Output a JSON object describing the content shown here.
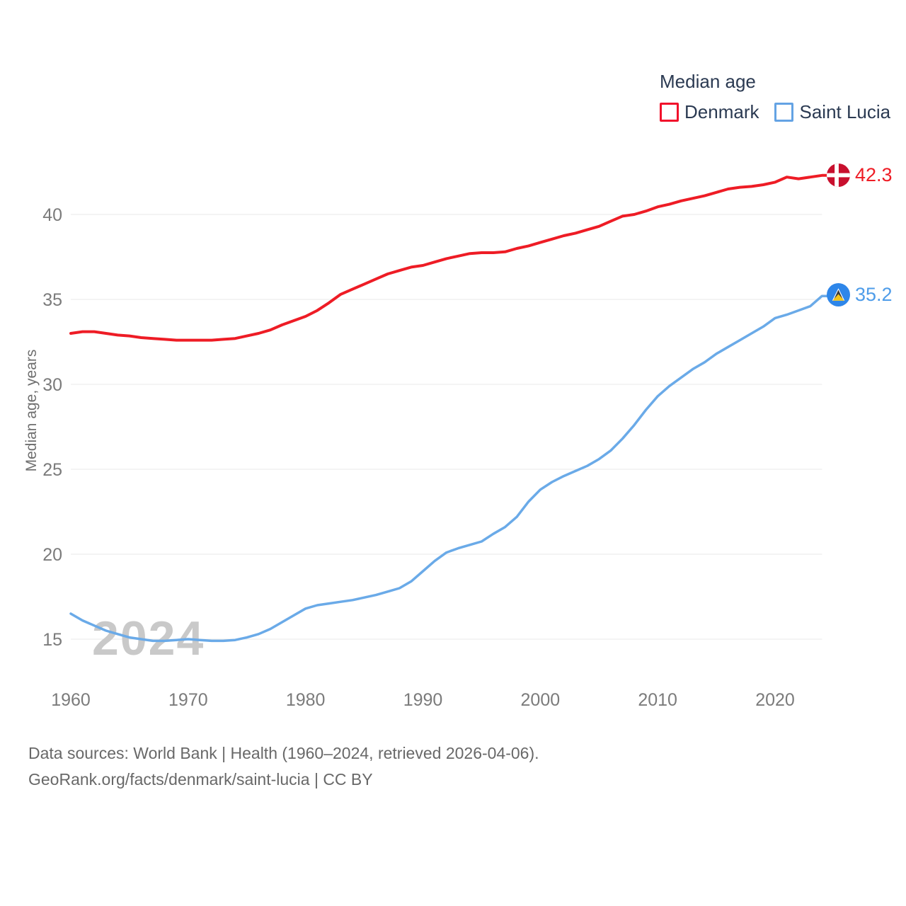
{
  "legend": {
    "title": "Median age",
    "items": [
      {
        "label": "Denmark",
        "color": "#f1112b"
      },
      {
        "label": "Saint Lucia",
        "color": "#64a3e4"
      }
    ]
  },
  "y_axis_title": "Median age, years",
  "footer": {
    "line1": "Data sources: World Bank | Health (1960–2024, retrieved 2026-04-06).",
    "line2": "GeoRank.org/facts/denmark/saint-lucia | CC BY"
  },
  "icons": {
    "denmark_flag": "denmark-flag-icon",
    "saint_lucia_flag": "saint-lucia-flag-icon"
  },
  "colors": {
    "denmark_line": "#ee1c25",
    "denmark_flag_red": "#c8102e",
    "saint_lucia_line": "#6aaae8",
    "saint_lucia_flag_blue": "#2e86e9",
    "legend_text": "#2b3a52",
    "tick_label": "#7b7b7b",
    "grid_line": "#e9e9e9",
    "watermark": "#c9c9c9",
    "footer_text": "#686868"
  },
  "chart_data": {
    "type": "line",
    "title": "Median age",
    "xlabel": "",
    "ylabel": "Median age, years",
    "watermark": "2024",
    "grid": true,
    "legend_position": "top-right",
    "xlim": [
      1960,
      2024
    ],
    "ylim": [
      13.5,
      43.5
    ],
    "xticks": [
      1960,
      1970,
      1980,
      1990,
      2000,
      2010,
      2020
    ],
    "yticks": [
      15,
      20,
      25,
      30,
      35,
      40
    ],
    "x": [
      1960,
      1961,
      1962,
      1963,
      1964,
      1965,
      1966,
      1967,
      1968,
      1969,
      1970,
      1971,
      1972,
      1973,
      1974,
      1975,
      1976,
      1977,
      1978,
      1979,
      1980,
      1981,
      1982,
      1983,
      1984,
      1985,
      1986,
      1987,
      1988,
      1989,
      1990,
      1991,
      1992,
      1993,
      1994,
      1995,
      1996,
      1997,
      1998,
      1999,
      2000,
      2001,
      2002,
      2003,
      2004,
      2005,
      2006,
      2007,
      2008,
      2009,
      2010,
      2011,
      2012,
      2013,
      2014,
      2015,
      2016,
      2017,
      2018,
      2019,
      2020,
      2021,
      2022,
      2023,
      2024
    ],
    "series": [
      {
        "name": "Denmark",
        "color": "#ee1c25",
        "stroke_width": 4,
        "end_label": "42.3",
        "values": [
          33.0,
          33.1,
          33.1,
          33.0,
          32.9,
          32.85,
          32.75,
          32.7,
          32.65,
          32.6,
          32.6,
          32.6,
          32.6,
          32.65,
          32.7,
          32.85,
          33.0,
          33.2,
          33.5,
          33.75,
          34.0,
          34.35,
          34.8,
          35.3,
          35.6,
          35.9,
          36.2,
          36.5,
          36.7,
          36.9,
          37.0,
          37.2,
          37.4,
          37.55,
          37.7,
          37.75,
          37.75,
          37.8,
          38.0,
          38.15,
          38.35,
          38.55,
          38.75,
          38.9,
          39.1,
          39.3,
          39.6,
          39.9,
          40.0,
          40.2,
          40.45,
          40.6,
          40.8,
          40.95,
          41.1,
          41.3,
          41.5,
          41.6,
          41.65,
          41.75,
          41.9,
          42.2,
          42.1,
          42.2,
          42.3
        ]
      },
      {
        "name": "Saint Lucia",
        "color": "#6aaae8",
        "stroke_width": 3.5,
        "end_label": "35.2",
        "values": [
          16.5,
          16.1,
          15.8,
          15.5,
          15.3,
          15.1,
          15.0,
          14.9,
          14.9,
          14.95,
          15.0,
          14.95,
          14.9,
          14.9,
          14.95,
          15.1,
          15.3,
          15.6,
          16.0,
          16.4,
          16.8,
          17.0,
          17.1,
          17.2,
          17.3,
          17.45,
          17.6,
          17.8,
          18.0,
          18.4,
          19.0,
          19.6,
          20.1,
          20.35,
          20.55,
          20.75,
          21.2,
          21.6,
          22.2,
          23.1,
          23.8,
          24.25,
          24.6,
          24.9,
          25.2,
          25.6,
          26.1,
          26.8,
          27.6,
          28.5,
          29.3,
          29.9,
          30.4,
          30.9,
          31.3,
          31.8,
          32.2,
          32.6,
          33.0,
          33.4,
          33.9,
          34.1,
          34.35,
          34.6,
          35.2
        ]
      }
    ]
  }
}
